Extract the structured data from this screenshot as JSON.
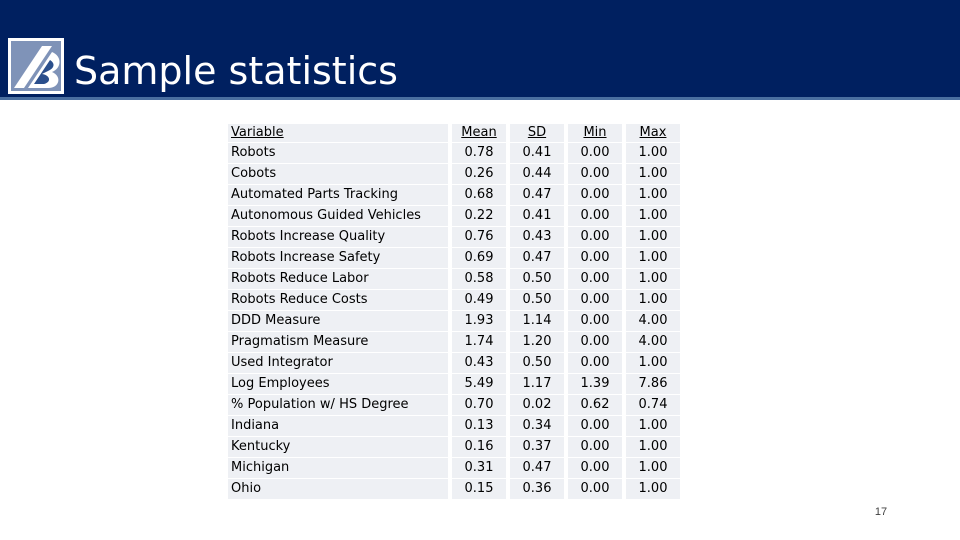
{
  "header": {
    "title": "Sample statistics",
    "logo_icon": "company-logo-icon",
    "background_color": "#002060"
  },
  "table": {
    "columns": [
      "Variable",
      "Mean",
      "SD",
      "Min",
      "Max"
    ],
    "rows": [
      {
        "variable": "Robots",
        "mean": "0.78",
        "sd": "0.41",
        "min": "0.00",
        "max": "1.00"
      },
      {
        "variable": "Cobots",
        "mean": "0.26",
        "sd": "0.44",
        "min": "0.00",
        "max": "1.00"
      },
      {
        "variable": "Automated Parts Tracking",
        "mean": "0.68",
        "sd": "0.47",
        "min": "0.00",
        "max": "1.00"
      },
      {
        "variable": "Autonomous Guided Vehicles",
        "mean": "0.22",
        "sd": "0.41",
        "min": "0.00",
        "max": "1.00"
      },
      {
        "variable": "Robots Increase Quality",
        "mean": "0.76",
        "sd": "0.43",
        "min": "0.00",
        "max": "1.00"
      },
      {
        "variable": "Robots Increase Safety",
        "mean": "0.69",
        "sd": "0.47",
        "min": "0.00",
        "max": "1.00"
      },
      {
        "variable": "Robots Reduce Labor",
        "mean": "0.58",
        "sd": "0.50",
        "min": "0.00",
        "max": "1.00"
      },
      {
        "variable": "Robots Reduce Costs",
        "mean": "0.49",
        "sd": "0.50",
        "min": "0.00",
        "max": "1.00"
      },
      {
        "variable": "DDD Measure",
        "mean": "1.93",
        "sd": "1.14",
        "min": "0.00",
        "max": "4.00"
      },
      {
        "variable": "Pragmatism Measure",
        "mean": "1.74",
        "sd": "1.20",
        "min": "0.00",
        "max": "4.00"
      },
      {
        "variable": "Used Integrator",
        "mean": "0.43",
        "sd": "0.50",
        "min": "0.00",
        "max": "1.00"
      },
      {
        "variable": "Log Employees",
        "mean": "5.49",
        "sd": "1.17",
        "min": "1.39",
        "max": "7.86"
      },
      {
        "variable": "% Population w/ HS Degree",
        "mean": "0.70",
        "sd": "0.02",
        "min": "0.62",
        "max": "0.74"
      },
      {
        "variable": "Indiana",
        "mean": "0.13",
        "sd": "0.34",
        "min": "0.00",
        "max": "1.00"
      },
      {
        "variable": "Kentucky",
        "mean": "0.16",
        "sd": "0.37",
        "min": "0.00",
        "max": "1.00"
      },
      {
        "variable": "Michigan",
        "mean": "0.31",
        "sd": "0.47",
        "min": "0.00",
        "max": "1.00"
      },
      {
        "variable": "Ohio",
        "mean": "0.15",
        "sd": "0.36",
        "min": "0.00",
        "max": "1.00"
      }
    ]
  },
  "footer": {
    "page_number": "17"
  }
}
